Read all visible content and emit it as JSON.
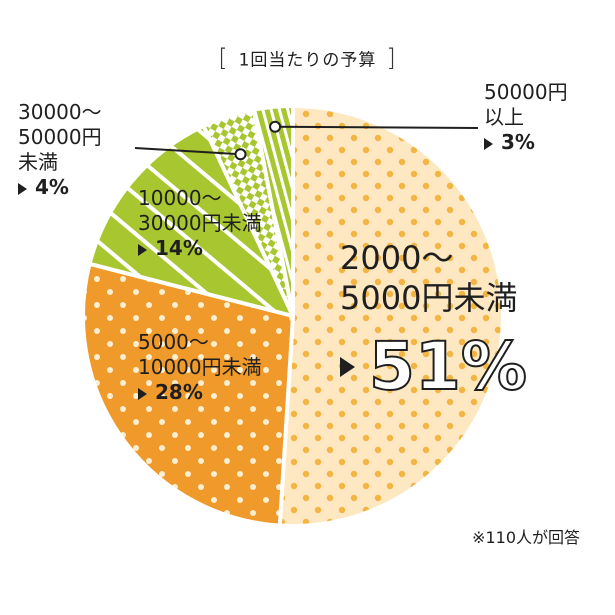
{
  "title": "1回当たりの予算",
  "note": "※110人が回答",
  "colors": {
    "big": "#fde8c2",
    "big_dot": "#f3b442",
    "orange": "#ef9a2a",
    "orange_dot": "#fdeecf",
    "green": "#a8c62f",
    "stripe": "#ffffff",
    "line": "#1f1f1f"
  },
  "chart_data": {
    "type": "pie",
    "title": "1回当たりの予算",
    "start": "top, clockwise",
    "slices": [
      {
        "label": "2000〜5000円未満",
        "value": 51,
        "pct_text": "51%"
      },
      {
        "label": "5000〜10000円未満",
        "value": 28,
        "pct_text": "28%"
      },
      {
        "label": "10000〜30000円未満",
        "value": 14,
        "pct_text": "14%"
      },
      {
        "label": "30000〜50000円未満",
        "value": 4,
        "pct_text": "4%"
      },
      {
        "label": "50000円以上",
        "value": 3,
        "pct_text": "3%"
      }
    ],
    "label_lines": {
      "s0": [
        "2000〜",
        "5000円未満"
      ],
      "s1": [
        "5000〜",
        "10000円未満"
      ],
      "s2": [
        "10000〜",
        "30000円未満"
      ],
      "s3": [
        "30000〜",
        "50000円",
        "未満"
      ],
      "s4": [
        "50000円",
        "以上"
      ]
    }
  }
}
